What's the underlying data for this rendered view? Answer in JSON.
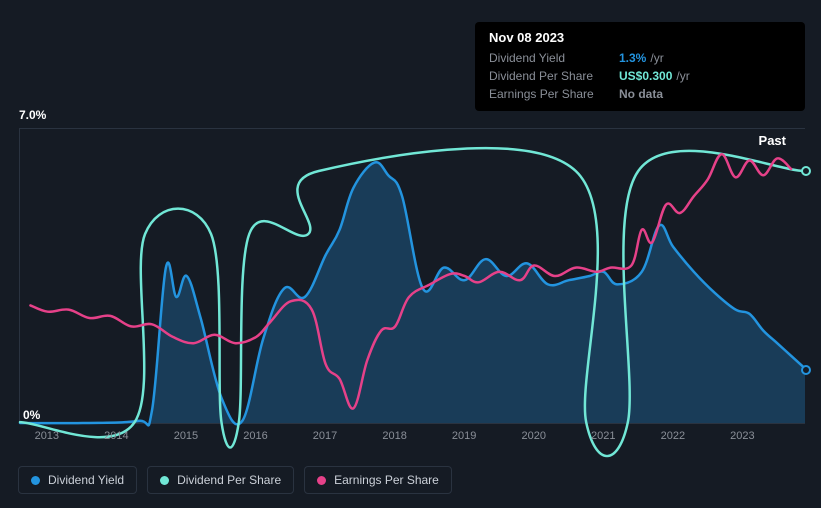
{
  "tooltip": {
    "date": "Nov 08 2023",
    "rows": [
      {
        "label": "Dividend Yield",
        "value": "1.3%",
        "unit": "/yr",
        "color": "#2394df"
      },
      {
        "label": "Dividend Per Share",
        "value": "US$0.300",
        "unit": "/yr",
        "color": "#71e7d6"
      },
      {
        "label": "Earnings Per Share",
        "value": "No data",
        "unit": "",
        "color": "#8a8f98"
      }
    ]
  },
  "chart": {
    "ylim": [
      0,
      7
    ],
    "y_top_label": "7.0%",
    "y_bottom_label": "0%",
    "past_label": "Past",
    "x_labels": [
      "2013",
      "2014",
      "2015",
      "2016",
      "2017",
      "2018",
      "2019",
      "2020",
      "2021",
      "2022",
      "2023"
    ],
    "x_range": [
      2012.6,
      2023.9
    ],
    "background": "#151b24",
    "plot_border": "#2a3340",
    "series": [
      {
        "name": "Dividend Yield",
        "color": "#2394df",
        "fill": true,
        "fill_opacity": 0.28,
        "width": 2.5,
        "end_marker": true,
        "points": [
          [
            2012.6,
            0
          ],
          [
            2013.5,
            0
          ],
          [
            2014.3,
            0.05
          ],
          [
            2014.5,
            0.3
          ],
          [
            2014.7,
            3.7
          ],
          [
            2014.85,
            3.0
          ],
          [
            2015.0,
            3.5
          ],
          [
            2015.2,
            2.5
          ],
          [
            2015.5,
            0.6
          ],
          [
            2015.8,
            0.05
          ],
          [
            2016.1,
            2.0
          ],
          [
            2016.4,
            3.2
          ],
          [
            2016.7,
            3.0
          ],
          [
            2017.0,
            4.0
          ],
          [
            2017.2,
            4.6
          ],
          [
            2017.4,
            5.6
          ],
          [
            2017.7,
            6.2
          ],
          [
            2017.9,
            5.9
          ],
          [
            2018.1,
            5.4
          ],
          [
            2018.4,
            3.2
          ],
          [
            2018.7,
            3.7
          ],
          [
            2019.0,
            3.4
          ],
          [
            2019.3,
            3.9
          ],
          [
            2019.6,
            3.5
          ],
          [
            2019.9,
            3.8
          ],
          [
            2020.2,
            3.3
          ],
          [
            2020.5,
            3.4
          ],
          [
            2020.8,
            3.5
          ],
          [
            2021.0,
            3.6
          ],
          [
            2021.2,
            3.3
          ],
          [
            2021.55,
            3.6
          ],
          [
            2021.8,
            4.7
          ],
          [
            2022.0,
            4.2
          ],
          [
            2022.3,
            3.6
          ],
          [
            2022.6,
            3.1
          ],
          [
            2022.9,
            2.7
          ],
          [
            2023.1,
            2.6
          ],
          [
            2023.3,
            2.2
          ],
          [
            2023.5,
            1.9
          ],
          [
            2023.7,
            1.6
          ],
          [
            2023.9,
            1.3
          ]
        ]
      },
      {
        "name": "Dividend Per Share",
        "color": "#71e7d6",
        "fill": false,
        "width": 2.5,
        "end_marker": true,
        "points": [
          [
            2012.6,
            0.02
          ],
          [
            2014.25,
            0.02
          ],
          [
            2014.4,
            4.5
          ],
          [
            2015.35,
            4.5
          ],
          [
            2015.5,
            0.02
          ],
          [
            2015.75,
            0.02
          ],
          [
            2015.9,
            4.5
          ],
          [
            2016.75,
            4.5
          ],
          [
            2016.9,
            6.0
          ],
          [
            2020.6,
            6.0
          ],
          [
            2020.75,
            0.02
          ],
          [
            2021.35,
            0.02
          ],
          [
            2021.5,
            6.0
          ],
          [
            2023.9,
            6.0
          ]
        ]
      },
      {
        "name": "Earnings Per Share",
        "color": "#e64189",
        "fill": false,
        "width": 2.5,
        "end_marker": false,
        "points": [
          [
            2012.75,
            2.8
          ],
          [
            2013.0,
            2.65
          ],
          [
            2013.3,
            2.7
          ],
          [
            2013.6,
            2.5
          ],
          [
            2013.9,
            2.55
          ],
          [
            2014.2,
            2.3
          ],
          [
            2014.5,
            2.35
          ],
          [
            2014.8,
            2.05
          ],
          [
            2015.1,
            1.9
          ],
          [
            2015.4,
            2.1
          ],
          [
            2015.7,
            1.9
          ],
          [
            2016.0,
            2.05
          ],
          [
            2016.2,
            2.4
          ],
          [
            2016.5,
            2.9
          ],
          [
            2016.8,
            2.7
          ],
          [
            2017.0,
            1.4
          ],
          [
            2017.2,
            1.05
          ],
          [
            2017.4,
            0.35
          ],
          [
            2017.6,
            1.5
          ],
          [
            2017.8,
            2.2
          ],
          [
            2018.0,
            2.3
          ],
          [
            2018.2,
            3.0
          ],
          [
            2018.5,
            3.3
          ],
          [
            2018.8,
            3.55
          ],
          [
            2019.0,
            3.5
          ],
          [
            2019.2,
            3.35
          ],
          [
            2019.5,
            3.6
          ],
          [
            2019.8,
            3.4
          ],
          [
            2020.0,
            3.75
          ],
          [
            2020.3,
            3.5
          ],
          [
            2020.6,
            3.7
          ],
          [
            2020.9,
            3.6
          ],
          [
            2021.1,
            3.7
          ],
          [
            2021.4,
            3.75
          ],
          [
            2021.55,
            4.6
          ],
          [
            2021.7,
            4.3
          ],
          [
            2021.9,
            5.2
          ],
          [
            2022.1,
            5.0
          ],
          [
            2022.3,
            5.4
          ],
          [
            2022.5,
            5.8
          ],
          [
            2022.7,
            6.4
          ],
          [
            2022.9,
            5.85
          ],
          [
            2023.1,
            6.25
          ],
          [
            2023.3,
            5.9
          ],
          [
            2023.5,
            6.3
          ],
          [
            2023.7,
            6.05
          ]
        ]
      }
    ]
  },
  "legend": [
    {
      "label": "Dividend Yield",
      "color": "#2394df"
    },
    {
      "label": "Dividend Per Share",
      "color": "#71e7d6"
    },
    {
      "label": "Earnings Per Share",
      "color": "#e64189"
    }
  ]
}
